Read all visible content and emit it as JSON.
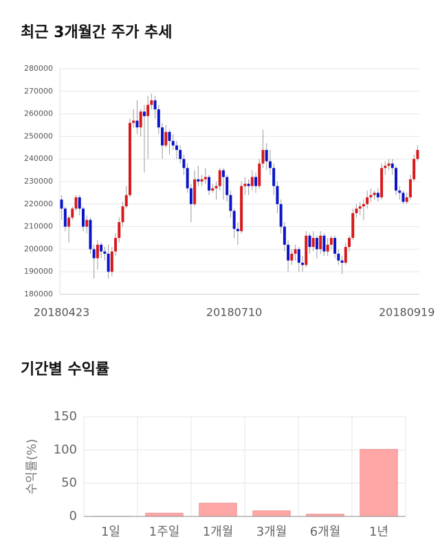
{
  "chart_data": [
    {
      "type": "candlestick",
      "title": "최근 3개월간 주가 추세",
      "categories": [
        "20180423",
        null,
        null,
        null,
        null,
        null,
        null,
        null,
        null,
        null,
        null,
        null,
        null,
        null,
        null,
        null,
        null,
        null,
        null,
        null,
        null,
        null,
        null,
        null,
        null,
        null,
        null,
        null,
        null,
        null,
        null,
        null,
        null,
        null,
        null,
        null,
        null,
        null,
        null,
        null,
        null,
        null,
        null,
        null,
        null,
        null,
        null,
        null,
        "20180710",
        null,
        null,
        null,
        null,
        null,
        null,
        null,
        null,
        null,
        null,
        null,
        null,
        null,
        null,
        null,
        null,
        null,
        null,
        null,
        null,
        null,
        null,
        null,
        null,
        null,
        null,
        null,
        null,
        null,
        null,
        null,
        null,
        null,
        null,
        null,
        null,
        null,
        null,
        null,
        null,
        null,
        null,
        null,
        null,
        null,
        null,
        null,
        "20180919",
        null,
        null,
        null
      ],
      "open": [
        222000,
        218000,
        210000,
        214000,
        218000,
        223000,
        218000,
        210000,
        213000,
        200000,
        196000,
        202000,
        199000,
        198000,
        190000,
        199000,
        205000,
        212000,
        219000,
        224000,
        256000,
        257000,
        254000,
        261000,
        259000,
        264000,
        266000,
        262000,
        254000,
        246000,
        252000,
        248000,
        246000,
        244000,
        240000,
        236000,
        227000,
        220000,
        231000,
        230000,
        231000,
        232000,
        226000,
        227000,
        228000,
        235000,
        232000,
        224000,
        217000,
        209000,
        208000,
        228000,
        229000,
        228000,
        232000,
        228000,
        238000,
        244000,
        239000,
        236000,
        228000,
        220000,
        210000,
        202000,
        195000,
        198000,
        200000,
        194000,
        193000,
        206000,
        201000,
        205000,
        200000,
        206000,
        199000,
        202000,
        205000,
        198000,
        195000,
        194000,
        201000,
        205000,
        216000,
        218000,
        219000,
        220000,
        223000,
        224000,
        225000,
        223000,
        236000,
        237000,
        238000,
        236000,
        226000,
        225000,
        221000,
        223000,
        231000,
        240000
      ],
      "high": [
        224000,
        219000,
        215000,
        219000,
        224000,
        224000,
        219000,
        215000,
        214000,
        202000,
        204000,
        203000,
        201000,
        202000,
        201000,
        207000,
        214000,
        221000,
        228000,
        258000,
        262000,
        266000,
        262000,
        264000,
        268000,
        269000,
        268000,
        264000,
        256000,
        255000,
        253000,
        251000,
        248000,
        246000,
        242000,
        238000,
        229000,
        235000,
        237000,
        233000,
        236000,
        233000,
        229000,
        230000,
        236000,
        236000,
        233000,
        226000,
        218000,
        212000,
        230000,
        232000,
        231000,
        235000,
        234000,
        240000,
        253000,
        247000,
        244000,
        238000,
        230000,
        222000,
        212000,
        204000,
        200000,
        202000,
        201000,
        197000,
        208000,
        207000,
        208000,
        206000,
        208000,
        207000,
        205000,
        206000,
        206000,
        200000,
        197000,
        203000,
        206000,
        218000,
        220000,
        221000,
        222000,
        226000,
        227000,
        226000,
        227000,
        238000,
        239000,
        240000,
        240000,
        237000,
        228000,
        226000,
        225000,
        233000,
        242000,
        246000
      ],
      "low": [
        213000,
        208000,
        203000,
        213000,
        217000,
        215000,
        208000,
        207000,
        198000,
        187000,
        191000,
        196000,
        195000,
        187000,
        188000,
        197000,
        203000,
        210000,
        218000,
        223000,
        254000,
        251000,
        250000,
        234000,
        240000,
        262000,
        258000,
        251000,
        240000,
        245000,
        242000,
        244000,
        240000,
        238000,
        233000,
        225000,
        212000,
        219000,
        228000,
        228000,
        229000,
        224000,
        225000,
        222000,
        226000,
        222000,
        221000,
        214000,
        205000,
        202000,
        207000,
        224000,
        224000,
        226000,
        225000,
        227000,
        236000,
        235000,
        233000,
        224000,
        216000,
        207000,
        199000,
        190000,
        193000,
        195000,
        190000,
        190000,
        192000,
        198000,
        199000,
        196000,
        198000,
        197000,
        197000,
        200000,
        196000,
        193000,
        189000,
        193000,
        199000,
        204000,
        214000,
        215000,
        213000,
        218000,
        221000,
        222000,
        221000,
        222000,
        233000,
        235000,
        233000,
        224000,
        222000,
        220000,
        220000,
        222000,
        230000,
        239000
      ],
      "close": [
        218000,
        210000,
        214000,
        218000,
        223000,
        218000,
        210000,
        213000,
        200000,
        196000,
        202000,
        199000,
        198000,
        190000,
        199000,
        205000,
        212000,
        219000,
        224000,
        256000,
        257000,
        254000,
        261000,
        259000,
        264000,
        266000,
        262000,
        254000,
        246000,
        252000,
        248000,
        246000,
        244000,
        240000,
        236000,
        227000,
        220000,
        231000,
        230000,
        231000,
        232000,
        226000,
        227000,
        228000,
        235000,
        232000,
        224000,
        217000,
        209000,
        208000,
        228000,
        229000,
        228000,
        232000,
        228000,
        238000,
        244000,
        239000,
        236000,
        228000,
        220000,
        210000,
        202000,
        195000,
        198000,
        200000,
        194000,
        193000,
        206000,
        201000,
        205000,
        200000,
        206000,
        199000,
        202000,
        205000,
        198000,
        195000,
        194000,
        201000,
        205000,
        216000,
        218000,
        219000,
        220000,
        223000,
        224000,
        225000,
        223000,
        236000,
        237000,
        238000,
        236000,
        226000,
        225000,
        221000,
        223000,
        231000,
        240000,
        244000
      ],
      "up_color": "#d7191c",
      "down_color": "#0a14c8",
      "ylim": [
        180000,
        280000
      ],
      "yticks": [
        180000,
        190000,
        200000,
        210000,
        220000,
        230000,
        240000,
        250000,
        260000,
        270000,
        280000
      ],
      "grid": true
    },
    {
      "type": "bar",
      "title": "기간별 수익률",
      "y_label": "수익률(%)",
      "categories": [
        "1일",
        "1주일",
        "1개월",
        "3개월",
        "6개월",
        "1년"
      ],
      "values": [
        0.3,
        5,
        20,
        8.5,
        3.5,
        101
      ],
      "color": "#ffa6a6",
      "ylim": [
        0,
        150
      ],
      "yticks": [
        0,
        50,
        100,
        150
      ],
      "grid": true
    }
  ]
}
